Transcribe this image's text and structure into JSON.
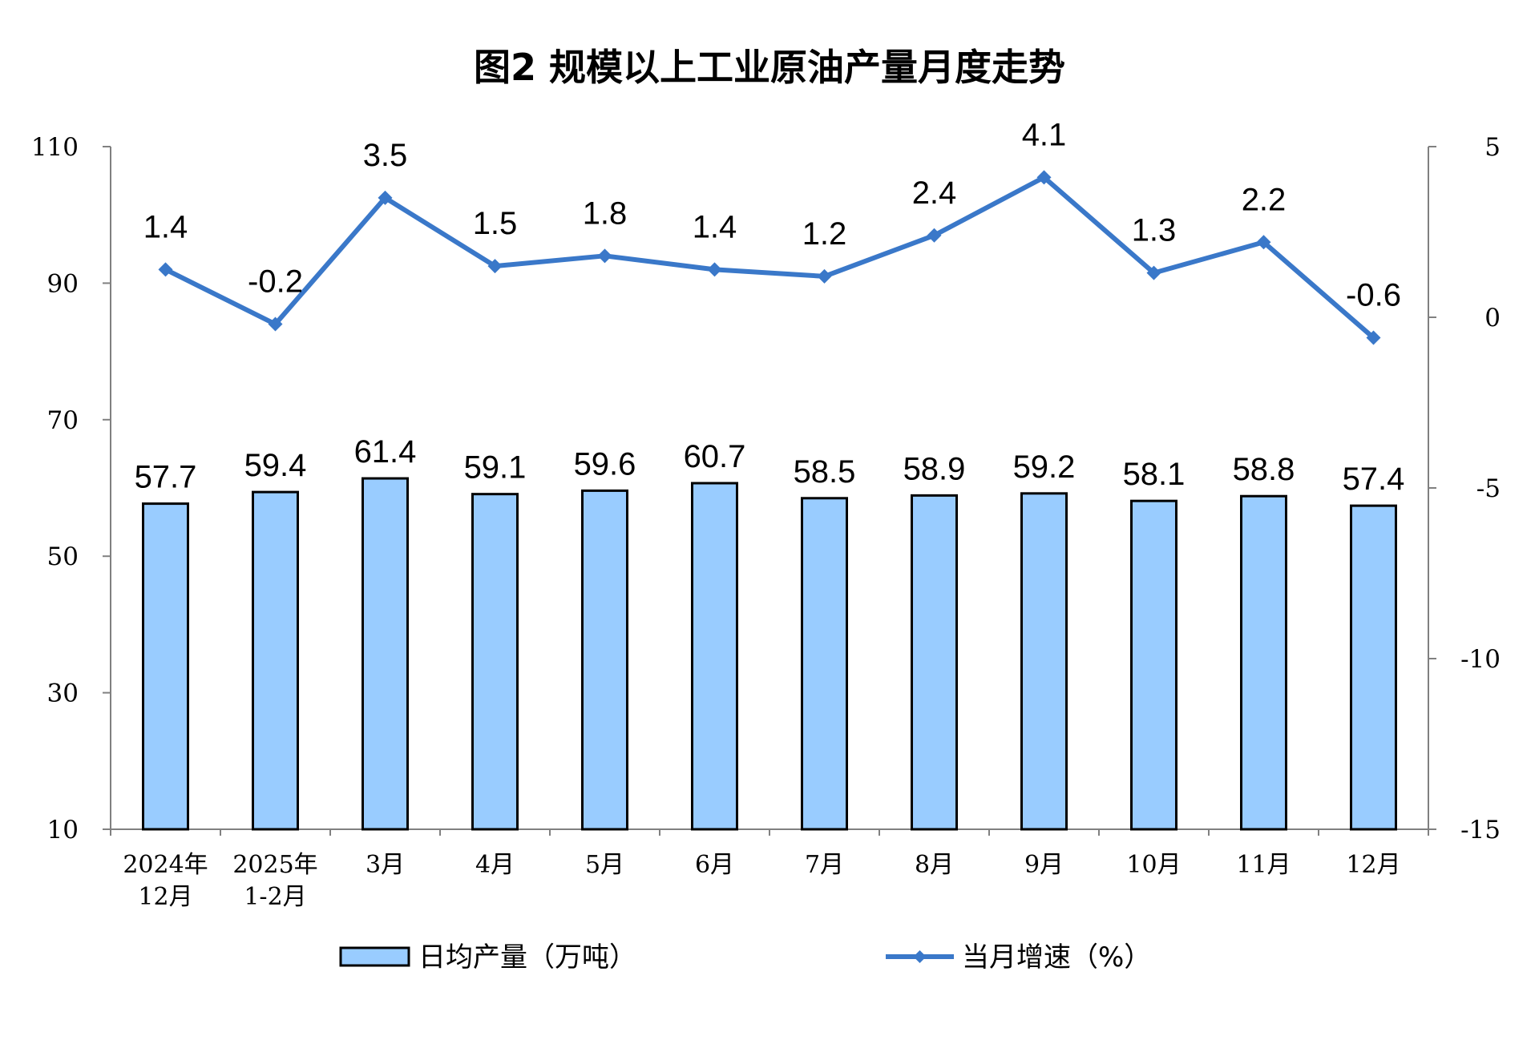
{
  "chart_data": {
    "type": "bar+line",
    "title": "图2  规模以上工业原油产量月度走势",
    "categories": [
      [
        "2024年",
        "12月"
      ],
      [
        "2025年",
        "1-2月"
      ],
      [
        "3月"
      ],
      [
        "4月"
      ],
      [
        "5月"
      ],
      [
        "6月"
      ],
      [
        "7月"
      ],
      [
        "8月"
      ],
      [
        "9月"
      ],
      [
        "10月"
      ],
      [
        "11月"
      ],
      [
        "12月"
      ]
    ],
    "series": [
      {
        "name": "日均产量（万吨）",
        "type": "bar",
        "axis": "left",
        "color": "#99CCFF",
        "values": [
          57.7,
          59.4,
          61.4,
          59.1,
          59.6,
          60.7,
          58.5,
          58.9,
          59.2,
          58.1,
          58.8,
          57.4
        ],
        "labels": [
          "57.7",
          "59.4",
          "61.4",
          "59.1",
          "59.6",
          "60.7",
          "58.5",
          "58.9",
          "59.2",
          "58.1",
          "58.8",
          "57.4"
        ]
      },
      {
        "name": "当月增速（%）",
        "type": "line",
        "axis": "right",
        "color": "#3A78C9",
        "values": [
          1.4,
          -0.2,
          3.5,
          1.5,
          1.8,
          1.4,
          1.2,
          2.4,
          4.1,
          1.3,
          2.2,
          -0.6
        ],
        "labels": [
          "1.4",
          "-0.2",
          "3.5",
          "1.5",
          "1.8",
          "1.4",
          "1.2",
          "2.4",
          "4.1",
          "1.3",
          "2.2",
          "-0.6"
        ]
      }
    ],
    "y_left": {
      "min": 10,
      "max": 110,
      "ticks": [
        10,
        30,
        50,
        70,
        90,
        110
      ]
    },
    "y_right": {
      "min": -15,
      "max": 5,
      "ticks": [
        5,
        0,
        -5,
        -10,
        -15
      ]
    },
    "grid": false,
    "legend_position": "bottom"
  }
}
